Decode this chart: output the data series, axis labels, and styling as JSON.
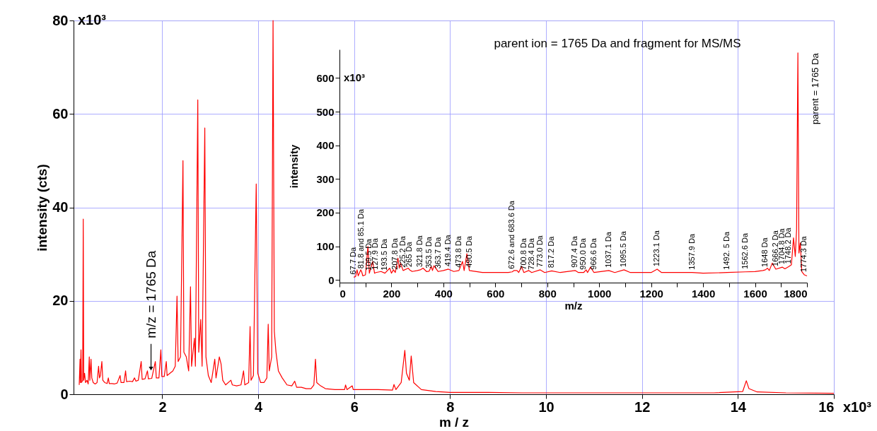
{
  "chart_data": [
    {
      "type": "line",
      "xlabel": "m / z",
      "ylabel": "intensity (cts)",
      "xlim": [
        0.15,
        16
      ],
      "ylim": [
        0,
        80
      ],
      "xticks": [
        2,
        4,
        6,
        8,
        10,
        12,
        14,
        16
      ],
      "yticks": [
        0,
        20,
        40,
        60,
        80
      ],
      "grid": true,
      "annotations": [
        {
          "text": "m/z = 1765 Da",
          "x": 1.765,
          "y": 5.5
        },
        "x10³",
        "x10³"
      ],
      "series": [
        {
          "color": "#ff0000",
          "x": [
            0.268,
            0.285,
            0.292,
            0.305,
            0.315,
            0.34,
            0.352,
            0.362,
            0.38,
            0.4,
            0.43,
            0.455,
            0.478,
            0.49,
            0.514,
            0.53,
            0.56,
            0.6,
            0.64,
            0.672,
            0.69,
            0.71,
            0.74,
            0.76,
            0.8,
            0.85,
            0.875,
            0.895,
            0.95,
            1.0,
            1.06,
            1.12,
            1.14,
            1.2,
            1.235,
            1.255,
            1.32,
            1.38,
            1.42,
            1.45,
            1.5,
            1.56,
            1.58,
            1.64,
            1.69,
            1.71,
            1.78,
            1.855,
            1.875,
            1.93,
            1.97,
            1.99,
            2.04,
            2.083,
            2.1,
            2.16,
            2.22,
            2.27,
            2.307,
            2.33,
            2.38,
            2.431,
            2.45,
            2.5,
            2.55,
            2.588,
            2.61,
            2.67,
            2.69,
            2.74,
            2.76,
            2.801,
            2.83,
            2.886,
            2.91,
            2.96,
            3.02,
            3.094,
            3.12,
            3.189,
            3.225,
            3.26,
            3.32,
            3.43,
            3.46,
            3.55,
            3.64,
            3.694,
            3.72,
            3.8,
            3.83,
            3.85,
            3.9,
            3.958,
            3.99,
            4.05,
            4.12,
            4.18,
            4.208,
            4.23,
            4.28,
            4.309,
            4.335,
            4.37,
            4.42,
            4.5,
            4.6,
            4.7,
            4.76,
            4.8,
            4.9,
            5.0,
            5.1,
            5.16,
            5.193,
            5.22,
            5.3,
            5.4,
            5.6,
            5.8,
            5.82,
            5.85,
            5.96,
            5.98,
            6.2,
            6.5,
            6.8,
            6.83,
            6.87,
            6.98,
            7.056,
            7.09,
            7.15,
            7.189,
            7.24,
            7.4,
            7.7,
            8.0,
            8.8,
            9.5,
            10.5,
            12.0,
            13.5,
            14.1,
            14.175,
            14.23,
            14.4,
            15.0,
            16.0
          ],
          "values": [
            2,
            7.5,
            2.5,
            9.5,
            2.5,
            3,
            37.5,
            3,
            4.5,
            2.5,
            3,
            2.2,
            8,
            3,
            7.5,
            3.5,
            2.5,
            2.2,
            2.5,
            6,
            3.5,
            4,
            7,
            3,
            2.5,
            2.3,
            3.5,
            2.3,
            2.3,
            2.2,
            2.4,
            4,
            2.5,
            2.5,
            5,
            2.7,
            2.8,
            2.7,
            3.5,
            2.8,
            3,
            7,
            3.2,
            3.3,
            5,
            3.3,
            3.4,
            7,
            3.5,
            3.5,
            9.5,
            3.8,
            3.8,
            7,
            4,
            4.5,
            5,
            6,
            21,
            7,
            8,
            50,
            9,
            8,
            5,
            23,
            6,
            12,
            6,
            63,
            9,
            16,
            6,
            57,
            8,
            4,
            2.5,
            7.5,
            3.5,
            8,
            6.5,
            3,
            2,
            3,
            2,
            1.8,
            2,
            5,
            2,
            2.5,
            14.5,
            3,
            4,
            45,
            4.5,
            2.5,
            2.5,
            3.5,
            15,
            5,
            8,
            80,
            13.5,
            9,
            5,
            3.5,
            2,
            1.8,
            2.8,
            1.5,
            1.5,
            1.2,
            1.2,
            2,
            7.5,
            2.5,
            1.8,
            1.2,
            1,
            1,
            2,
            1,
            1.8,
            1,
            1,
            1,
            0.9,
            2.1,
            1,
            2.5,
            9.4,
            4.5,
            3,
            8.2,
            2.5,
            1,
            0.6,
            0.4,
            0.4,
            0.3,
            0.3,
            0.3,
            0.3,
            0.6,
            2.9,
            1.2,
            0.5,
            0.3,
            0.2
          ]
        }
      ]
    },
    {
      "type": "line",
      "title": "parent ion = 1765 Da and fragment for MS/MS",
      "xlabel": "m/z",
      "ylabel": "intensity",
      "xlim": [
        0,
        1800
      ],
      "ylim": [
        -8,
        685
      ],
      "xticks": [
        0,
        {
          "value": 100,
          "label": null
        },
        200,
        {
          "value": 300,
          "label": null
        },
        400,
        {
          "value": 500,
          "label": null
        },
        600,
        {
          "value": 700,
          "label": null
        },
        800,
        {
          "value": 900,
          "label": null
        },
        1000,
        {
          "value": 1100,
          "label": null
        },
        1200,
        {
          "value": 1300,
          "label": null
        },
        1400,
        {
          "value": 1500,
          "label": null
        },
        1600,
        {
          "value": 1700,
          "label": null
        },
        1800
      ],
      "yticks": [
        0,
        100,
        200,
        300,
        400,
        500,
        600
      ],
      "annotations": [
        {
          "text": "67.7 Da",
          "x": 55,
          "y": 8
        },
        {
          "text": "81.8 and 85.1 Da",
          "x": 85.1,
          "y": 25
        },
        {
          "text": "109.5 Da",
          "x": 115,
          "y": 20
        },
        {
          "text": "127.9 Da",
          "x": 140,
          "y": 22
        },
        {
          "text": "193.5 Da",
          "x": 175,
          "y": 20
        },
        {
          "text": "207.8 Da",
          "x": 215,
          "y": 22
        },
        {
          "text": "225.2 Da",
          "x": 245,
          "y": 28
        },
        {
          "text": "265 Da",
          "x": 270,
          "y": 30
        },
        {
          "text": "321.8 Da",
          "x": 311,
          "y": 30
        },
        {
          "text": "353.5 Da",
          "x": 345,
          "y": 26
        },
        {
          "text": "363.7 Da",
          "x": 380,
          "y": 25
        },
        {
          "text": "419.4 Da",
          "x": 419.4,
          "y": 32
        },
        {
          "text": "473.8 Da",
          "x": 460,
          "y": 28
        },
        {
          "text": "490.5 Da",
          "x": 500,
          "y": 28
        },
        {
          "text": "672.6 and 683.6 Da",
          "x": 665,
          "y": 24
        },
        {
          "text": "700.8 Da",
          "x": 710,
          "y": 22
        },
        {
          "text": "728.4 Da",
          "x": 740,
          "y": 22
        },
        {
          "text": "773.0 Da",
          "x": 773,
          "y": 30
        },
        {
          "text": "817.2 Da",
          "x": 817.2,
          "y": 27
        },
        {
          "text": "907.4 Da",
          "x": 907.4,
          "y": 28
        },
        {
          "text": "950.0 Da",
          "x": 940,
          "y": 22
        },
        {
          "text": "966.6 Da",
          "x": 980,
          "y": 22
        },
        {
          "text": "1037.1 Da",
          "x": 1037.1,
          "y": 28
        },
        {
          "text": "1095.5 Da",
          "x": 1095.5,
          "y": 30
        },
        {
          "text": "1223.1 Da",
          "x": 1223.1,
          "y": 32
        },
        {
          "text": "1357.9 Da",
          "x": 1357.9,
          "y": 22
        },
        {
          "text": "1492. 5 Da",
          "x": 1492.5,
          "y": 22
        },
        {
          "text": "1562.6 Da",
          "x": 1562.6,
          "y": 24
        },
        {
          "text": "1648 Da",
          "x": 1640,
          "y": 30
        },
        {
          "text": "1666.2 Da",
          "x": 1680,
          "y": 32
        },
        {
          "text": "1704.8 Da",
          "x": 1704.8,
          "y": 38
        },
        {
          "text": "1748.2 Da",
          "x": 1730,
          "y": 40
        },
        {
          "text": "1774.3 Da",
          "x": 1790,
          "y": 15
        },
        "parent = 1765 Da",
        "x10³"
      ],
      "series": [
        {
          "color": "#ff0000",
          "x": [
            55,
            62,
            67.7,
            72,
            81.8,
            85.1,
            90,
            100,
            109.5,
            115,
            127.9,
            135,
            140,
            160,
            175,
            193.5,
            200,
            207.8,
            215,
            225.2,
            230,
            235,
            245,
            265,
            270,
            280,
            300,
            311,
            321.8,
            335,
            345,
            353.5,
            358,
            363.7,
            380,
            400,
            419.4,
            440,
            460,
            473.8,
            480,
            490.5,
            500,
            550,
            600,
            650,
            665,
            672.6,
            683.6,
            690,
            700.8,
            710,
            728.4,
            740,
            773,
            790,
            817.2,
            850,
            907.4,
            920,
            940,
            950,
            955,
            966.6,
            980,
            1037.1,
            1060,
            1095.5,
            1120,
            1200,
            1223.1,
            1240,
            1300,
            1357.9,
            1400,
            1492.5,
            1562.6,
            1600,
            1630,
            1640,
            1648,
            1655,
            1666.2,
            1680,
            1704.8,
            1715,
            1730,
            1740,
            1748.2,
            1755,
            1760,
            1765,
            1769,
            1774.3,
            1780,
            1790,
            1800
          ],
          "values": [
            8,
            10,
            30,
            12,
            30,
            25,
            12,
            15,
            100,
            20,
            55,
            20,
            22,
            25,
            20,
            35,
            20,
            30,
            22,
            65,
            35,
            50,
            28,
            35,
            30,
            25,
            28,
            30,
            35,
            25,
            26,
            40,
            28,
            42,
            25,
            28,
            32,
            25,
            28,
            55,
            28,
            78,
            28,
            22,
            22,
            22,
            24,
            28,
            28,
            22,
            40,
            22,
            28,
            22,
            30,
            22,
            27,
            22,
            28,
            22,
            22,
            30,
            22,
            38,
            22,
            28,
            22,
            30,
            22,
            22,
            32,
            22,
            22,
            22,
            20,
            22,
            24,
            25,
            28,
            30,
            35,
            28,
            50,
            32,
            38,
            33,
            40,
            45,
            125,
            70,
            150,
            675,
            80,
            110,
            25,
            15,
            12
          ]
        }
      ]
    }
  ]
}
